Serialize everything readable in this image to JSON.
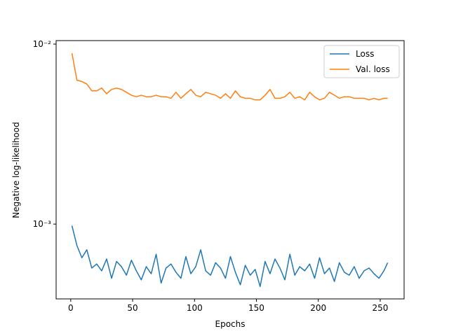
{
  "chart_data": {
    "type": "line",
    "xlabel": "Epochs",
    "ylabel": "Negative log-likelihood",
    "x": [
      1,
      5,
      9,
      13,
      17,
      21,
      25,
      29,
      33,
      37,
      41,
      45,
      49,
      53,
      57,
      61,
      65,
      69,
      73,
      77,
      81,
      85,
      89,
      93,
      97,
      101,
      105,
      109,
      113,
      117,
      121,
      125,
      129,
      133,
      137,
      141,
      145,
      149,
      153,
      157,
      161,
      165,
      169,
      173,
      177,
      181,
      185,
      189,
      193,
      197,
      201,
      205,
      209,
      213,
      217,
      221,
      225,
      229,
      233,
      237,
      241,
      245,
      249,
      253,
      256
    ],
    "series": [
      {
        "name": "Loss",
        "color": "#1f77b4",
        "values": [
          0.00098,
          0.00076,
          0.00065,
          0.00072,
          0.00057,
          0.0006,
          0.00055,
          0.00064,
          0.0005,
          0.00062,
          0.00058,
          0.00052,
          0.00063,
          0.00055,
          0.00049,
          0.00058,
          0.00053,
          0.00068,
          0.00047,
          0.00057,
          0.0006,
          0.00054,
          0.0005,
          0.00066,
          0.00053,
          0.00058,
          0.00072,
          0.00055,
          0.00052,
          0.00061,
          0.00057,
          0.0005,
          0.00066,
          0.00054,
          0.00046,
          0.00059,
          0.00052,
          0.00056,
          0.00045,
          0.00062,
          0.00053,
          0.00064,
          0.00057,
          0.00049,
          0.00068,
          0.00052,
          0.00058,
          0.00055,
          0.0006,
          0.0005,
          0.00065,
          0.00053,
          0.00057,
          0.00048,
          0.00061,
          0.00054,
          0.00052,
          0.00058,
          0.0005,
          0.00055,
          0.00057,
          0.00053,
          0.0005,
          0.00055,
          0.00061
        ]
      },
      {
        "name": "Val. loss",
        "color": "#ff7f0e",
        "values": [
          0.0089,
          0.0063,
          0.0062,
          0.006,
          0.0055,
          0.0055,
          0.0057,
          0.0053,
          0.0056,
          0.0057,
          0.0056,
          0.0054,
          0.0052,
          0.0051,
          0.0052,
          0.0051,
          0.0051,
          0.0052,
          0.0051,
          0.0051,
          0.005,
          0.0054,
          0.005,
          0.0053,
          0.0056,
          0.0052,
          0.0051,
          0.0054,
          0.0053,
          0.0052,
          0.005,
          0.0053,
          0.005,
          0.0055,
          0.0051,
          0.005,
          0.005,
          0.0049,
          0.0049,
          0.0052,
          0.0056,
          0.005,
          0.005,
          0.0051,
          0.0054,
          0.005,
          0.0051,
          0.0049,
          0.0054,
          0.0051,
          0.0049,
          0.005,
          0.0054,
          0.0052,
          0.005,
          0.0051,
          0.0051,
          0.005,
          0.005,
          0.005,
          0.0049,
          0.005,
          0.0049,
          0.005,
          0.005
        ]
      }
    ],
    "xlim": [
      -11.8,
      269.3
    ],
    "xticks": [
      0,
      50,
      100,
      150,
      200,
      250
    ],
    "ylim": [
      0.000384,
      0.01046
    ],
    "yscale": "log",
    "yticks": [
      {
        "value": 0.001,
        "label": "10⁻³"
      },
      {
        "value": 0.01,
        "label": "10⁻²"
      }
    ],
    "legend": "upper right"
  }
}
